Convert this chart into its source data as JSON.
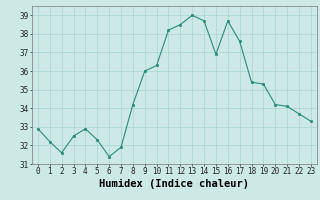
{
  "x": [
    0,
    1,
    2,
    3,
    4,
    5,
    6,
    7,
    8,
    9,
    10,
    11,
    12,
    13,
    14,
    15,
    16,
    17,
    18,
    19,
    20,
    21,
    22,
    23
  ],
  "y": [
    32.9,
    32.2,
    31.6,
    32.5,
    32.9,
    32.3,
    31.4,
    31.9,
    34.2,
    36.0,
    36.3,
    38.2,
    38.5,
    39.0,
    38.7,
    36.9,
    38.7,
    37.6,
    35.4,
    35.3,
    34.2,
    34.1,
    33.7,
    33.3
  ],
  "xlabel": "Humidex (Indice chaleur)",
  "ylim": [
    31,
    39.5
  ],
  "xlim": [
    -0.5,
    23.5
  ],
  "yticks": [
    31,
    32,
    33,
    34,
    35,
    36,
    37,
    38,
    39
  ],
  "xticks": [
    0,
    1,
    2,
    3,
    4,
    5,
    6,
    7,
    8,
    9,
    10,
    11,
    12,
    13,
    14,
    15,
    16,
    17,
    18,
    19,
    20,
    21,
    22,
    23
  ],
  "line_color": "#2d8b7a",
  "marker_color": "#2d8b7a",
  "bg_color": "#cce9e5",
  "grid_color": "#aad4cf",
  "tick_fontsize": 5.5,
  "xlabel_fontsize": 7.5
}
